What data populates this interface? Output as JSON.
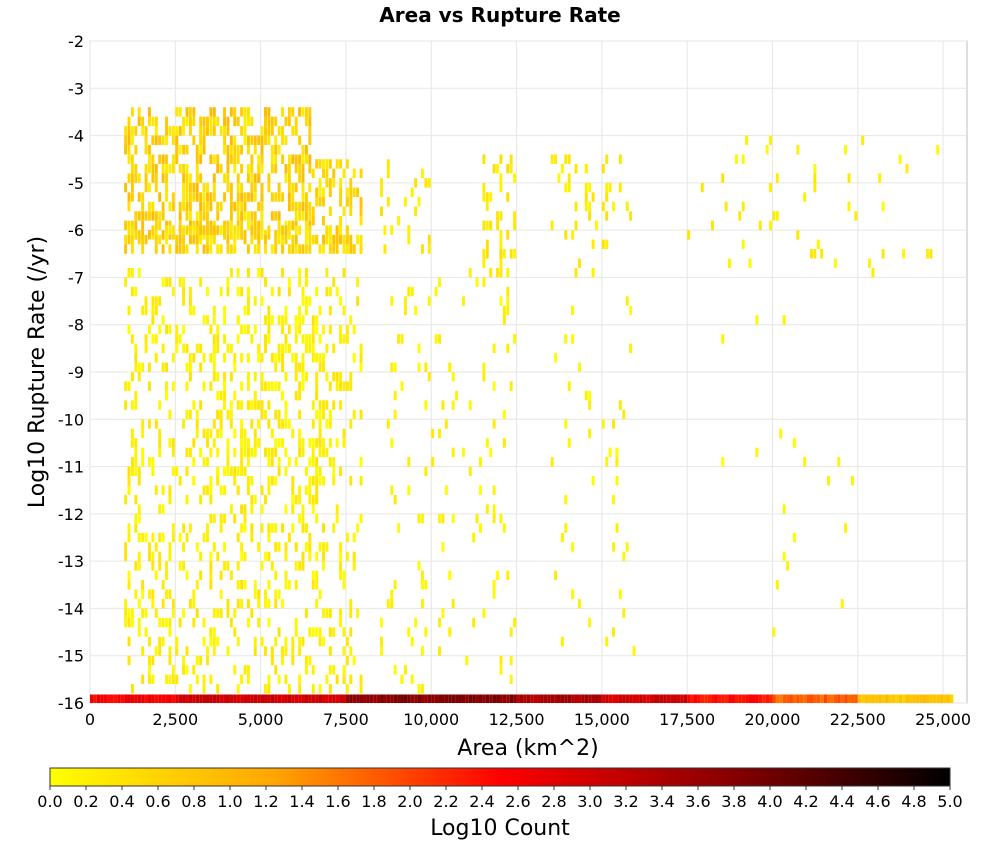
{
  "chart_data": {
    "type": "heatmap",
    "title": "Area vs Rupture Rate",
    "xlabel": "Area (km^2)",
    "ylabel": "Log10 Rupture Rate (/yr)",
    "xlim": [
      0,
      25700
    ],
    "ylim": [
      -16,
      -2
    ],
    "x_ticks": [
      "0",
      "2,500",
      "5,000",
      "7,500",
      "10,000",
      "12,500",
      "15,000",
      "17,500",
      "20,000",
      "22,500",
      "25,000"
    ],
    "x_tick_values": [
      0,
      2500,
      5000,
      7500,
      10000,
      12500,
      15000,
      17500,
      20000,
      22500,
      25000
    ],
    "y_ticks": [
      "-2",
      "-3",
      "-4",
      "-5",
      "-6",
      "-7",
      "-8",
      "-9",
      "-10",
      "-11",
      "-12",
      "-13",
      "-14",
      "-15",
      "-16"
    ],
    "y_tick_values": [
      -2,
      -3,
      -4,
      -5,
      -6,
      -7,
      -8,
      -9,
      -10,
      -11,
      -12,
      -13,
      -14,
      -15,
      -16
    ],
    "grid": true,
    "colorbar": {
      "label": "Log10 Count",
      "range": [
        0,
        5
      ],
      "ticks": [
        "0.0",
        "0.2",
        "0.4",
        "0.6",
        "0.8",
        "1.0",
        "1.2",
        "1.4",
        "1.6",
        "1.8",
        "2.0",
        "2.2",
        "2.4",
        "2.6",
        "2.8",
        "3.0",
        "3.2",
        "3.4",
        "3.6",
        "3.8",
        "4.0",
        "4.2",
        "4.4",
        "4.6",
        "4.8",
        "5.0"
      ],
      "colors": [
        "#ffff00",
        "#ffa500",
        "#ff0000",
        "#8b0000",
        "#000000"
      ]
    },
    "bottom_row": {
      "y": -16,
      "x_range": [
        0,
        25300
      ],
      "segments": [
        {
          "x_range": [
            0,
            2500
          ],
          "log10_count": 2.6
        },
        {
          "x_range": [
            2500,
            7500
          ],
          "log10_count": 3.0
        },
        {
          "x_range": [
            7500,
            12500
          ],
          "log10_count": 3.8
        },
        {
          "x_range": [
            12500,
            15000
          ],
          "log10_count": 3.4
        },
        {
          "x_range": [
            15000,
            17500
          ],
          "log10_count": 3.0
        },
        {
          "x_range": [
            17500,
            20000
          ],
          "log10_count": 2.4
        },
        {
          "x_range": [
            20000,
            22500
          ],
          "log10_count": 1.8
        },
        {
          "x_range": [
            22500,
            25300
          ],
          "log10_count": 0.8
        }
      ]
    },
    "scatter_cells": [
      {
        "x_range": [
          1000,
          6500
        ],
        "y_range": [
          -6.2,
          -3.5
        ],
        "density": 0.55,
        "log10_count": [
          0.2,
          1.0
        ]
      },
      {
        "x_range": [
          6500,
          8000
        ],
        "y_range": [
          -6.5,
          -4.5
        ],
        "density": 0.45,
        "log10_count": [
          0.2,
          0.8
        ]
      },
      {
        "x_range": [
          1000,
          8000
        ],
        "y_range": [
          -6.5,
          -6.0
        ],
        "density": 0.5,
        "log10_count": [
          0.2,
          0.9
        ]
      },
      {
        "x_range": [
          8500,
          10000
        ],
        "y_range": [
          -6.5,
          -4.5
        ],
        "density": 0.18,
        "log10_count": [
          0.1,
          0.5
        ]
      },
      {
        "x_range": [
          11500,
          12500
        ],
        "y_range": [
          -7.0,
          -4.5
        ],
        "density": 0.3,
        "log10_count": [
          0.1,
          0.5
        ]
      },
      {
        "x_range": [
          13500,
          16000
        ],
        "y_range": [
          -7.0,
          -4.5
        ],
        "density": 0.12,
        "log10_count": [
          0.1,
          0.4
        ]
      },
      {
        "x_range": [
          17500,
          25000
        ],
        "y_range": [
          -7.0,
          -4.0
        ],
        "density": 0.05,
        "log10_count": [
          0.0,
          0.4
        ]
      },
      {
        "x_range": [
          1000,
          8000
        ],
        "y_range": [
          -15.8,
          -7.0
        ],
        "density": 0.22,
        "log10_count": [
          0.0,
          0.4
        ]
      },
      {
        "x_range": [
          3500,
          7000
        ],
        "y_range": [
          -13.0,
          -8.0
        ],
        "density": 0.18,
        "log10_count": [
          0.0,
          0.4
        ]
      },
      {
        "x_range": [
          8500,
          12500
        ],
        "y_range": [
          -15.8,
          -7.0
        ],
        "density": 0.06,
        "log10_count": [
          0.0,
          0.3
        ]
      },
      {
        "x_range": [
          13500,
          16000
        ],
        "y_range": [
          -15.0,
          -7.5
        ],
        "density": 0.04,
        "log10_count": [
          0.0,
          0.3
        ]
      },
      {
        "x_range": [
          18500,
          22500
        ],
        "y_range": [
          -15.0,
          -8.0
        ],
        "density": 0.012,
        "log10_count": [
          0.0,
          0.2
        ]
      }
    ]
  }
}
